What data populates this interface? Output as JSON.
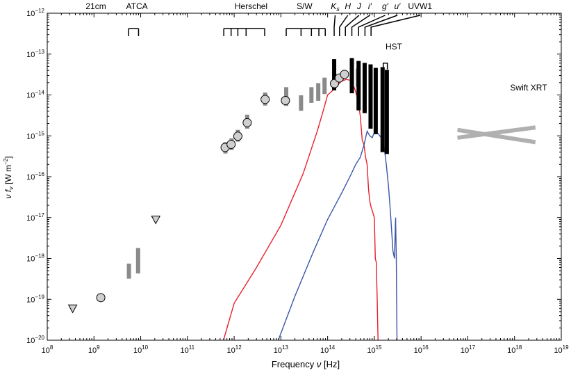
{
  "chart_data": {
    "type": "scatter",
    "xlabel_text": "Frequency",
    "xlabel_symbol": "ν",
    "xlabel_unit": "[Hz]",
    "ylabel_symbol": "ν f",
    "ylabel_sub": "ν",
    "ylabel_unit": "[W m",
    "ylabel_unit_sup": "−2",
    "ylabel_unit_end": "]",
    "x_scale": "log",
    "y_scale": "log",
    "xlim": [
      100000000,
      10000000000000000000
    ],
    "ylim": [
      1e-20,
      1e-12
    ],
    "x_ticks": [
      {
        "value": 100000000.0,
        "base": "10",
        "exp": "8"
      },
      {
        "value": 1000000000.0,
        "base": "10",
        "exp": "9"
      },
      {
        "value": 10000000000.0,
        "base": "10",
        "exp": "10"
      },
      {
        "value": 100000000000.0,
        "base": "10",
        "exp": "11"
      },
      {
        "value": 1000000000000.0,
        "base": "10",
        "exp": "12"
      },
      {
        "value": 10000000000000.0,
        "base": "10",
        "exp": "13"
      },
      {
        "value": 100000000000000.0,
        "base": "10",
        "exp": "14"
      },
      {
        "value": 1000000000000000.0,
        "base": "10",
        "exp": "15"
      },
      {
        "value": 1e+16,
        "base": "10",
        "exp": "16"
      },
      {
        "value": 1e+17,
        "base": "10",
        "exp": "17"
      },
      {
        "value": 1e+18,
        "base": "10",
        "exp": "18"
      },
      {
        "value": 1e+19,
        "base": "10",
        "exp": "19"
      }
    ],
    "y_ticks": [
      {
        "value": 1e-12,
        "base": "10",
        "exp": "−12"
      },
      {
        "value": 1e-13,
        "base": "10",
        "exp": "−13"
      },
      {
        "value": 1e-14,
        "base": "10",
        "exp": "−14"
      },
      {
        "value": 1e-15,
        "base": "10",
        "exp": "−15"
      },
      {
        "value": 1e-16,
        "base": "10",
        "exp": "−16"
      },
      {
        "value": 1e-17,
        "base": "10",
        "exp": "−17"
      },
      {
        "value": 1e-18,
        "base": "10",
        "exp": "−18"
      },
      {
        "value": 1e-19,
        "base": "10",
        "exp": "−19"
      },
      {
        "value": 1e-20,
        "base": "10",
        "exp": "−20"
      }
    ],
    "band_labels": [
      {
        "text": "21cm",
        "x": 1100000000.0,
        "italic": false
      },
      {
        "text": "ATCA",
        "x": 8300000000.0,
        "italic": false
      },
      {
        "text": "Herschel",
        "x": 2300000000000.0,
        "italic": false
      },
      {
        "text": "S/W",
        "x": 32000000000000.0,
        "italic": false
      },
      {
        "text": "K",
        "sub": "s",
        "x": 145000000000000.0,
        "italic": true
      },
      {
        "text": "H",
        "x": 270000000000000.0,
        "italic": true
      },
      {
        "text": "J",
        "x": 470000000000000.0,
        "italic": true
      },
      {
        "text": "i′",
        "x": 800000000000000.0,
        "italic": true
      },
      {
        "text": "g′",
        "x": 1700000000000000.0,
        "italic": true
      },
      {
        "text": "u′",
        "x": 3100000000000000.0,
        "italic": true
      },
      {
        "text": "UVW1",
        "x": 9500000000000000.0,
        "italic": false
      }
    ],
    "atca_bracket": [
      5500000000.0,
      9000000000.0
    ],
    "herschel_bracket": {
      "x": [
        600000000000.0,
        860000000000.0,
        1200000000000.0,
        1800000000000.0,
        4500000000000.0
      ],
      "label_x": 2300000000000.0
    },
    "sw_bracket": {
      "x": [
        13000000000000.0,
        27000000000000.0,
        45000000000000.0,
        65000000000000.0,
        89000000000000.0
      ],
      "label_x": 32000000000000.0
    },
    "filter_markers": [
      {
        "x": 138000000000000.0,
        "label_x": 145000000000000.0
      },
      {
        "x": 180000000000000.0,
        "label_x": 270000000000000.0
      },
      {
        "x": 240000000000000.0,
        "label_x": 470000000000000.0
      },
      {
        "x": 330000000000000.0,
        "label_x": 800000000000000.0
      },
      {
        "x": 460000000000000.0,
        "label_x": 1700000000000000.0
      },
      {
        "x": 630000000000000.0,
        "label_x": 3100000000000000.0
      },
      {
        "x": 850000000000000.0,
        "label_x": 9500000000000000.0
      }
    ],
    "hst_label": "HST",
    "hst_bracket": {
      "x": [
        1550000000000000.0,
        1900000000000000.0
      ],
      "y": 6e-14
    },
    "swift_label": "Swift XRT",
    "swift_label_pos": {
      "x": 2e+18,
      "y": 1.3e-14
    },
    "swift_bowtie": [
      {
        "x": [
          6e+16,
          2.8e+18
        ],
        "y": [
          1.4e-15,
          7e-16
        ]
      },
      {
        "x": [
          6e+16,
          2.8e+18
        ],
        "y": [
          9e-16,
          1.6e-15
        ]
      }
    ],
    "circles": [
      {
        "x": 1400000000.0,
        "y": 1.1e-19
      },
      {
        "x": 640000000000.0,
        "y": 5.2e-16
      },
      {
        "x": 860000000000.0,
        "y": 6.2e-16
      },
      {
        "x": 1200000000000.0,
        "y": 9.8e-16
      },
      {
        "x": 1900000000000.0,
        "y": 2.1e-15
      },
      {
        "x": 4600000000000.0,
        "y": 7.8e-15
      },
      {
        "x": 12500000000000.0,
        "y": 7.3e-15
      },
      {
        "x": 140000000000000.0,
        "y": 1.9e-14
      },
      {
        "x": 178000000000000.0,
        "y": 2.6e-14
      },
      {
        "x": 230000000000000.0,
        "y": 3.2e-14
      }
    ],
    "triangles": [
      {
        "x": 350000000.0,
        "y": 6e-20
      },
      {
        "x": 21000000000.0,
        "y": 9e-18
      }
    ],
    "gray_bars": [
      {
        "x": 5600000000.0,
        "y": [
          3.2e-19,
          7.5e-19
        ]
      },
      {
        "x": 8800000000.0,
        "y": [
          4.3e-19,
          1.8e-18
        ]
      },
      {
        "x": 650000000000.0,
        "y": [
          3.7e-16,
          7e-16
        ]
      },
      {
        "x": 880000000000.0,
        "y": [
          4.5e-16,
          8.7e-16
        ]
      },
      {
        "x": 1200000000000.0,
        "y": [
          7.2e-16,
          1.4e-15
        ]
      },
      {
        "x": 1900000000000.0,
        "y": [
          1.5e-15,
          3.3e-15
        ]
      },
      {
        "x": 4600000000000.0,
        "y": [
          5.5e-15,
          1.15e-14
        ]
      },
      {
        "x": 13000000000000.0,
        "y": [
          5.4e-15,
          1.55e-14
        ]
      },
      {
        "x": 27000000000000.0,
        "y": [
          4.1e-15,
          9.8e-15
        ]
      },
      {
        "x": 45000000000000.0,
        "y": [
          6.4e-15,
          1.55e-14
        ]
      },
      {
        "x": 63000000000000.0,
        "y": [
          7.2e-15,
          1.95e-14
        ]
      },
      {
        "x": 86000000000000.0,
        "y": [
          1.05e-14,
          2.65e-14
        ]
      },
      {
        "x": 445000000000000.0,
        "y": [
          1.55e-14,
          4.4e-14
        ]
      }
    ],
    "black_bars": [
      {
        "x": 138000000000000.0,
        "y": [
          1.3e-14,
          7.5e-14
        ]
      },
      {
        "x": 330000000000000.0,
        "y": [
          1.1e-14,
          8e-14
        ]
      },
      {
        "x": 460000000000000.0,
        "y": [
          4.2e-15,
          6.8e-14
        ]
      },
      {
        "x": 620000000000000.0,
        "y": [
          3.6e-15,
          6.1e-14
        ]
      },
      {
        "x": 830000000000000.0,
        "y": [
          1.5e-15,
          5.6e-14
        ]
      },
      {
        "x": 1070000000000000.0,
        "y": [
          1.1e-15,
          4.6e-14
        ]
      },
      {
        "x": 1500000000000000.0,
        "y": [
          4e-16,
          4.8e-14
        ]
      },
      {
        "x": 1850000000000000.0,
        "y": [
          3.6e-16,
          4.1e-14
        ]
      }
    ],
    "series": [
      {
        "color": "#e8202b",
        "x": [
          590000000000.0,
          1000000000000.0,
          3000000000000.0,
          10000000000000.0,
          30000000000000.0,
          60000000000000.0,
          80000000000000.0,
          100000000000000.0,
          130000000000000.0,
          160000000000000.0,
          200000000000000.0,
          250000000000000.0,
          300000000000000.0,
          350000000000000.0,
          400000000000000.0,
          450000000000000.0,
          500000000000000.0,
          550000000000000.0,
          600000000000000.0,
          650000000000000.0,
          700000000000000.0,
          750000000000000.0,
          800000000000000.0,
          850000000000000.0,
          900000000000000.0,
          1000000000000000.0,
          1050000000000000.0,
          1100000000000000.0,
          1150000000000000.0,
          1200000000000000.0
        ],
        "y": [
          1e-20,
          8e-20,
          6e-19,
          6.5e-18,
          1.2e-16,
          1.3e-15,
          4e-15,
          1e-14,
          1.3e-14,
          1.7e-14,
          2.2e-14,
          2.4e-14,
          2.3e-14,
          1.8e-14,
          1.2e-14,
          7e-15,
          3e-15,
          8e-16,
          6e-16,
          3e-16,
          2e-16,
          5e-17,
          2.5e-17,
          1.8e-17,
          1.5e-17,
          1e-17,
          1e-18,
          8e-19,
          1e-19,
          1e-20
        ]
      },
      {
        "color": "#3a55a8",
        "x": [
          8800000000000.0,
          20000000000000.0,
          50000000000000.0,
          100000000000000.0,
          200000000000000.0,
          300000000000000.0,
          400000000000000.0,
          500000000000000.0,
          600000000000000.0,
          700000000000000.0,
          800000000000000.0,
          900000000000000.0,
          1000000000000000.0,
          1200000000000000.0,
          1400000000000000.0,
          1600000000000000.0,
          1800000000000000.0,
          2000000000000000.0,
          2200000000000000.0,
          2500000000000000.0,
          2700000000000000.0,
          2850000000000000.0,
          2950000000000000.0,
          3000000000000000.0,
          3050000000000000.0
        ],
        "y": [
          1e-20,
          1.2e-19,
          1.5e-18,
          9e-18,
          4e-17,
          1e-16,
          2e-16,
          3e-16,
          6e-16,
          1.3e-15,
          1e-15,
          9e-16,
          1.2e-15,
          1.15e-15,
          9e-16,
          6e-16,
          2e-16,
          6e-17,
          1.5e-17,
          1.5e-18,
          1e-18,
          1e-17,
          1e-18,
          1e-19,
          1e-20
        ]
      }
    ]
  }
}
